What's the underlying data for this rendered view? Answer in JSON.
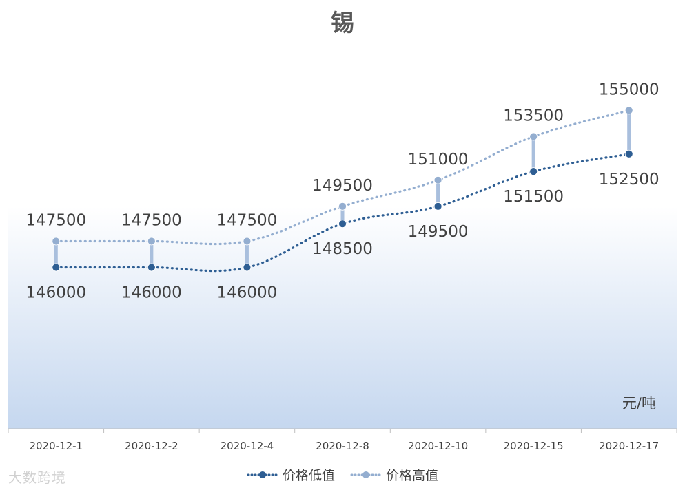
{
  "chart_data": {
    "type": "line",
    "title": "锡",
    "categories": [
      "2020-12-1",
      "2020-12-2",
      "2020-12-4",
      "2020-12-8",
      "2020-12-10",
      "2020-12-15",
      "2020-12-17"
    ],
    "series": [
      {
        "name": "价格低值",
        "values": [
          146000,
          146000,
          146000,
          148500,
          149500,
          151500,
          152500
        ],
        "color": "#2e5e93"
      },
      {
        "name": "价格高值",
        "values": [
          147500,
          147500,
          147500,
          149500,
          151000,
          153500,
          155000
        ],
        "color": "#94aed0"
      }
    ],
    "ylim": [
      136750,
      159750
    ],
    "unit": "元/吨",
    "legend_position": "bottom",
    "grid": false,
    "high_low_lines": true,
    "smooth": true
  },
  "watermark": "大数跨境"
}
